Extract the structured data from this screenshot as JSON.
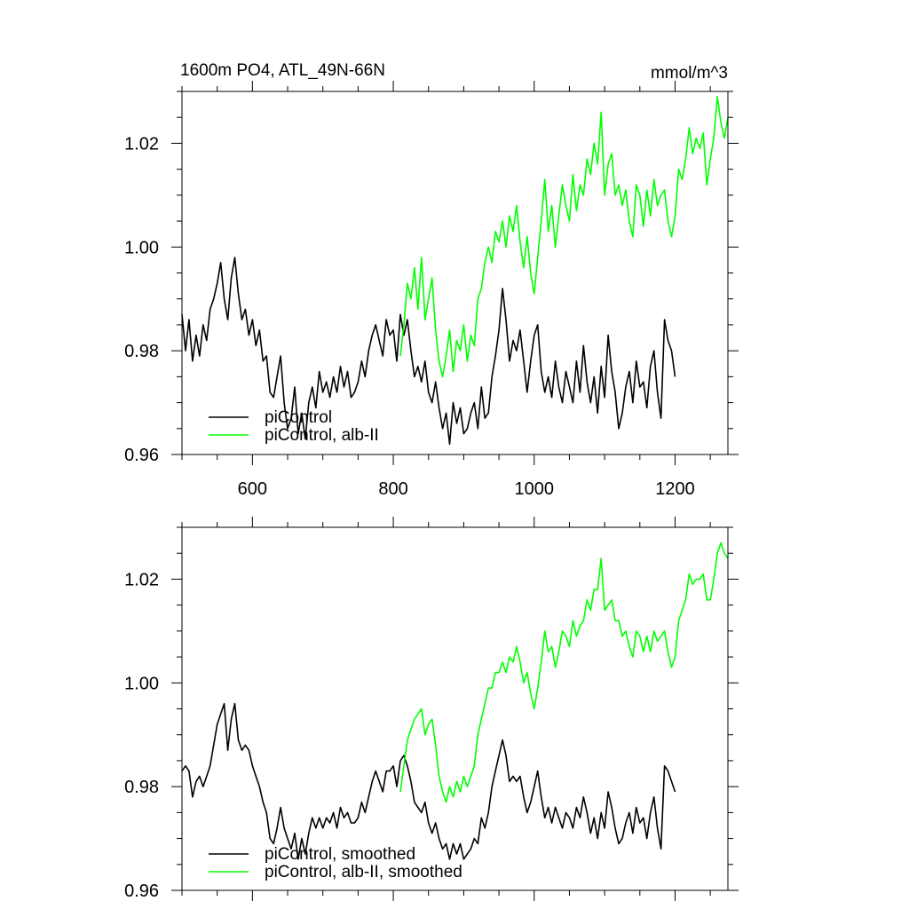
{
  "chart_data": [
    {
      "type": "line",
      "title": "1600m PO4, ATL_49N-66N",
      "units": "mmol/m^3",
      "xlim": [
        500,
        1275
      ],
      "ylim": [
        0.96,
        1.03
      ],
      "x_ticks": [
        600,
        800,
        1000,
        1200
      ],
      "x_tick_labels": [
        "600",
        "800",
        "1000",
        "1200"
      ],
      "y_ticks": [
        0.96,
        0.98,
        1.0,
        1.02
      ],
      "y_tick_labels": [
        "0.96",
        "0.98",
        "1.00",
        "1.02"
      ],
      "legend_position": "bottom-left",
      "series": [
        {
          "name": "piControl",
          "color": "#000000",
          "x": [
            500,
            505,
            510,
            515,
            520,
            525,
            530,
            535,
            540,
            545,
            550,
            555,
            560,
            565,
            570,
            575,
            580,
            585,
            590,
            595,
            600,
            605,
            610,
            615,
            620,
            625,
            630,
            635,
            640,
            645,
            650,
            655,
            660,
            665,
            670,
            675,
            680,
            685,
            690,
            695,
            700,
            705,
            710,
            715,
            720,
            725,
            730,
            735,
            740,
            745,
            750,
            755,
            760,
            765,
            770,
            775,
            780,
            785,
            790,
            795,
            800,
            805,
            810,
            815,
            820,
            825,
            830,
            835,
            840,
            845,
            850,
            855,
            860,
            865,
            870,
            875,
            880,
            885,
            890,
            895,
            900,
            905,
            910,
            915,
            920,
            925,
            930,
            935,
            940,
            945,
            950,
            955,
            960,
            965,
            970,
            975,
            980,
            985,
            990,
            995,
            1000,
            1005,
            1010,
            1015,
            1020,
            1025,
            1030,
            1035,
            1040,
            1045,
            1050,
            1055,
            1060,
            1065,
            1070,
            1075,
            1080,
            1085,
            1090,
            1095,
            1100,
            1105,
            1110,
            1115,
            1120,
            1125,
            1130,
            1135,
            1140,
            1145,
            1150,
            1155,
            1160,
            1165,
            1170,
            1175,
            1180,
            1185,
            1190,
            1195,
            1200
          ],
          "y": [
            0.987,
            0.98,
            0.986,
            0.978,
            0.983,
            0.979,
            0.985,
            0.982,
            0.988,
            0.99,
            0.993,
            0.997,
            0.99,
            0.986,
            0.994,
            0.998,
            0.991,
            0.986,
            0.988,
            0.983,
            0.986,
            0.981,
            0.984,
            0.978,
            0.979,
            0.972,
            0.971,
            0.975,
            0.979,
            0.97,
            0.965,
            0.967,
            0.973,
            0.964,
            0.968,
            0.963,
            0.97,
            0.973,
            0.969,
            0.976,
            0.972,
            0.974,
            0.971,
            0.975,
            0.972,
            0.977,
            0.973,
            0.976,
            0.971,
            0.972,
            0.974,
            0.978,
            0.975,
            0.98,
            0.983,
            0.985,
            0.982,
            0.979,
            0.986,
            0.983,
            0.984,
            0.978,
            0.987,
            0.983,
            0.986,
            0.98,
            0.975,
            0.977,
            0.974,
            0.978,
            0.972,
            0.97,
            0.974,
            0.969,
            0.965,
            0.968,
            0.962,
            0.97,
            0.966,
            0.969,
            0.964,
            0.965,
            0.968,
            0.97,
            0.965,
            0.973,
            0.967,
            0.968,
            0.975,
            0.979,
            0.984,
            0.992,
            0.986,
            0.978,
            0.982,
            0.98,
            0.984,
            0.978,
            0.972,
            0.978,
            0.983,
            0.985,
            0.976,
            0.972,
            0.975,
            0.971,
            0.978,
            0.973,
            0.97,
            0.976,
            0.973,
            0.97,
            0.978,
            0.972,
            0.981,
            0.974,
            0.97,
            0.975,
            0.968,
            0.977,
            0.971,
            0.983,
            0.976,
            0.972,
            0.965,
            0.968,
            0.973,
            0.976,
            0.97,
            0.978,
            0.973,
            0.974,
            0.969,
            0.977,
            0.98,
            0.972,
            0.967,
            0.986,
            0.982,
            0.98,
            0.975
          ]
        },
        {
          "name": "piControl, alb-II",
          "color": "#00ff00",
          "x": [
            810,
            815,
            820,
            825,
            830,
            835,
            840,
            845,
            850,
            855,
            860,
            865,
            870,
            875,
            880,
            885,
            890,
            895,
            900,
            905,
            910,
            915,
            920,
            925,
            930,
            935,
            940,
            945,
            950,
            955,
            960,
            965,
            970,
            975,
            980,
            985,
            990,
            995,
            1000,
            1005,
            1010,
            1015,
            1020,
            1025,
            1030,
            1035,
            1040,
            1045,
            1050,
            1055,
            1060,
            1065,
            1070,
            1075,
            1080,
            1085,
            1090,
            1095,
            1100,
            1105,
            1110,
            1115,
            1120,
            1125,
            1130,
            1135,
            1140,
            1145,
            1150,
            1155,
            1160,
            1165,
            1170,
            1175,
            1180,
            1185,
            1190,
            1195,
            1200,
            1205,
            1210,
            1215,
            1220,
            1225,
            1230,
            1235,
            1240,
            1245,
            1250,
            1255,
            1260,
            1265,
            1270,
            1275
          ],
          "y": [
            0.979,
            0.985,
            0.993,
            0.99,
            0.996,
            0.988,
            0.998,
            0.986,
            0.99,
            0.994,
            0.984,
            0.978,
            0.975,
            0.979,
            0.984,
            0.976,
            0.982,
            0.98,
            0.985,
            0.978,
            0.983,
            0.981,
            0.99,
            0.992,
            0.997,
            1.0,
            0.997,
            1.003,
            1.001,
            1.005,
            1.0,
            1.006,
            1.003,
            1.008,
            1.001,
            0.996,
            1.002,
            0.995,
            0.991,
            0.998,
            1.005,
            1.013,
            1.003,
            1.008,
            1.0,
            1.006,
            1.012,
            1.008,
            1.005,
            1.014,
            1.007,
            1.012,
            1.01,
            1.017,
            1.014,
            1.02,
            1.016,
            1.026,
            1.01,
            1.016,
            1.018,
            1.01,
            1.012,
            1.008,
            1.011,
            1.005,
            1.002,
            1.012,
            1.01,
            1.004,
            1.011,
            1.006,
            1.013,
            1.008,
            1.01,
            1.011,
            1.005,
            1.002,
            1.006,
            1.015,
            1.013,
            1.017,
            1.023,
            1.018,
            1.021,
            1.019,
            1.022,
            1.012,
            1.017,
            1.021,
            1.029,
            1.024,
            1.021,
            1.025
          ]
        }
      ]
    },
    {
      "type": "line",
      "xlim": [
        500,
        1275
      ],
      "ylim": [
        0.96,
        1.03
      ],
      "x_ticks": [
        600,
        800,
        1000,
        1200
      ],
      "y_ticks": [
        0.96,
        0.98,
        1.0,
        1.02
      ],
      "y_tick_labels": [
        "0.96",
        "0.98",
        "1.00",
        "1.02"
      ],
      "legend_position": "bottom-left",
      "series": [
        {
          "name": "piControl, smoothed",
          "color": "#000000",
          "x": [
            500,
            505,
            510,
            515,
            520,
            525,
            530,
            535,
            540,
            545,
            550,
            555,
            560,
            565,
            570,
            575,
            580,
            585,
            590,
            595,
            600,
            605,
            610,
            615,
            620,
            625,
            630,
            635,
            640,
            645,
            650,
            655,
            660,
            665,
            670,
            675,
            680,
            685,
            690,
            695,
            700,
            705,
            710,
            715,
            720,
            725,
            730,
            735,
            740,
            745,
            750,
            755,
            760,
            765,
            770,
            775,
            780,
            785,
            790,
            795,
            800,
            805,
            810,
            815,
            820,
            825,
            830,
            835,
            840,
            845,
            850,
            855,
            860,
            865,
            870,
            875,
            880,
            885,
            890,
            895,
            900,
            905,
            910,
            915,
            920,
            925,
            930,
            935,
            940,
            945,
            950,
            955,
            960,
            965,
            970,
            975,
            980,
            985,
            990,
            995,
            1000,
            1005,
            1010,
            1015,
            1020,
            1025,
            1030,
            1035,
            1040,
            1045,
            1050,
            1055,
            1060,
            1065,
            1070,
            1075,
            1080,
            1085,
            1090,
            1095,
            1100,
            1105,
            1110,
            1115,
            1120,
            1125,
            1130,
            1135,
            1140,
            1145,
            1150,
            1155,
            1160,
            1165,
            1170,
            1175,
            1180,
            1185,
            1190,
            1195,
            1200
          ],
          "y": [
            0.983,
            0.984,
            0.983,
            0.978,
            0.981,
            0.982,
            0.98,
            0.982,
            0.984,
            0.988,
            0.992,
            0.994,
            0.996,
            0.987,
            0.993,
            0.996,
            0.989,
            0.987,
            0.988,
            0.987,
            0.984,
            0.982,
            0.98,
            0.977,
            0.975,
            0.97,
            0.969,
            0.972,
            0.976,
            0.972,
            0.97,
            0.968,
            0.971,
            0.966,
            0.97,
            0.967,
            0.971,
            0.974,
            0.972,
            0.974,
            0.972,
            0.974,
            0.973,
            0.975,
            0.972,
            0.976,
            0.974,
            0.975,
            0.973,
            0.973,
            0.974,
            0.977,
            0.975,
            0.978,
            0.981,
            0.983,
            0.981,
            0.979,
            0.983,
            0.983,
            0.984,
            0.98,
            0.985,
            0.986,
            0.984,
            0.981,
            0.977,
            0.976,
            0.975,
            0.977,
            0.973,
            0.971,
            0.973,
            0.97,
            0.968,
            0.969,
            0.966,
            0.969,
            0.967,
            0.969,
            0.966,
            0.967,
            0.968,
            0.97,
            0.969,
            0.974,
            0.972,
            0.975,
            0.98,
            0.983,
            0.986,
            0.989,
            0.986,
            0.981,
            0.982,
            0.981,
            0.982,
            0.978,
            0.975,
            0.977,
            0.98,
            0.983,
            0.978,
            0.974,
            0.976,
            0.973,
            0.976,
            0.974,
            0.972,
            0.975,
            0.974,
            0.972,
            0.976,
            0.974,
            0.978,
            0.975,
            0.971,
            0.974,
            0.97,
            0.975,
            0.972,
            0.979,
            0.976,
            0.972,
            0.969,
            0.97,
            0.973,
            0.975,
            0.971,
            0.976,
            0.973,
            0.974,
            0.97,
            0.975,
            0.978,
            0.972,
            0.968,
            0.984,
            0.983,
            0.981,
            0.979
          ]
        },
        {
          "name": "piControl, alb-II, smoothed",
          "color": "#00ff00",
          "x": [
            810,
            815,
            820,
            825,
            830,
            835,
            840,
            845,
            850,
            855,
            860,
            865,
            870,
            875,
            880,
            885,
            890,
            895,
            900,
            905,
            910,
            915,
            920,
            925,
            930,
            935,
            940,
            945,
            950,
            955,
            960,
            965,
            970,
            975,
            980,
            985,
            990,
            995,
            1000,
            1005,
            1010,
            1015,
            1020,
            1025,
            1030,
            1035,
            1040,
            1045,
            1050,
            1055,
            1060,
            1065,
            1070,
            1075,
            1080,
            1085,
            1090,
            1095,
            1100,
            1105,
            1110,
            1115,
            1120,
            1125,
            1130,
            1135,
            1140,
            1145,
            1150,
            1155,
            1160,
            1165,
            1170,
            1175,
            1180,
            1185,
            1190,
            1195,
            1200,
            1205,
            1210,
            1215,
            1220,
            1225,
            1230,
            1235,
            1240,
            1245,
            1250,
            1255,
            1260,
            1265,
            1270,
            1275
          ],
          "y": [
            0.979,
            0.984,
            0.989,
            0.991,
            0.993,
            0.994,
            0.995,
            0.99,
            0.992,
            0.993,
            0.988,
            0.982,
            0.979,
            0.977,
            0.98,
            0.978,
            0.981,
            0.979,
            0.982,
            0.98,
            0.982,
            0.984,
            0.99,
            0.993,
            0.996,
            0.999,
            0.999,
            1.002,
            1.002,
            1.004,
            1.002,
            1.005,
            1.004,
            1.007,
            1.004,
            1.0,
            1.002,
            0.998,
            0.995,
            0.999,
            1.004,
            1.01,
            1.006,
            1.007,
            1.003,
            1.006,
            1.01,
            1.009,
            1.007,
            1.012,
            1.009,
            1.011,
            1.012,
            1.016,
            1.014,
            1.018,
            1.018,
            1.024,
            1.014,
            1.015,
            1.016,
            1.012,
            1.012,
            1.009,
            1.01,
            1.007,
            1.005,
            1.01,
            1.009,
            1.006,
            1.009,
            1.006,
            1.01,
            1.008,
            1.009,
            1.01,
            1.006,
            1.003,
            1.005,
            1.012,
            1.014,
            1.016,
            1.021,
            1.019,
            1.02,
            1.02,
            1.021,
            1.016,
            1.016,
            1.02,
            1.025,
            1.027,
            1.025,
            1.024
          ]
        }
      ]
    }
  ]
}
